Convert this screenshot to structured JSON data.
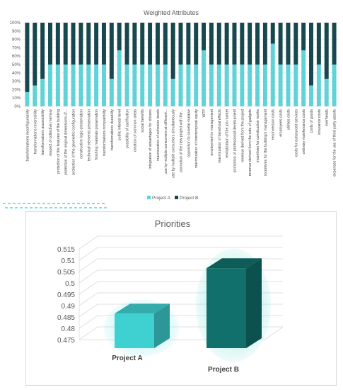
{
  "chart_data": [
    {
      "type": "bar",
      "stacked": "100%",
      "title": "Weighted Attributes",
      "yticks": [
        "0%",
        "10%",
        "20%",
        "30%",
        "40%",
        "50%",
        "60%",
        "70%",
        "80%",
        "90%",
        "100%"
      ],
      "ylim": [
        0,
        100
      ],
      "legend_position": "bottom",
      "categories": [
        "transformations reconfigurability",
        "transformations reversibility",
        "transformations accessibility",
        "respect of collective memory",
        "protection of the features of the building",
        "protection of the original dimensions of...",
        "protection of the geometric configuration",
        "constructive logic preservation",
        "technical elements preservation",
        "finishing materials preservation",
        "transformations compatibility",
        "transformations durability",
        "public interest level",
        "possibility of use/fruition",
        "creation of common areas",
        "social benefits",
        "integration of advantages for citizens",
        "maximization of cohesion levels",
        "use by multiple consumers at different...",
        "use by multiple consumers simultaneously",
        "promotion of the new project with the...",
        "opposition to societal malaise",
        "maximization of intertemporal equity",
        "WTP",
        "employment in management",
        "maximization of beneficial effects",
        "revitalization of the job market",
        "promotion of professional development",
        "revenue derived from the project",
        "revenue derived from the sale of gadgets",
        "incentives for construction works",
        "incentives for the building's management",
        "reconversion costs",
        "employees costs",
        "utilities costs",
        "costs for outsourced services",
        "ordinary maintenance costs",
        "costs of goods",
        "insurance costs",
        "overheads",
        "expenses for the use of third party assets"
      ],
      "series": [
        {
          "name": "Project A",
          "values": [
            17,
            25,
            33,
            50,
            50,
            50,
            50,
            50,
            50,
            50,
            50,
            33,
            67,
            50,
            50,
            50,
            50,
            50,
            50,
            33,
            50,
            50,
            50,
            67,
            50,
            50,
            50,
            50,
            50,
            50,
            50,
            50,
            75,
            50,
            50,
            50,
            67,
            25,
            50,
            33,
            50
          ],
          "color": "#5fd3d8"
        },
        {
          "name": "Project B",
          "values": [
            83,
            75,
            67,
            50,
            50,
            50,
            50,
            50,
            50,
            50,
            50,
            67,
            33,
            50,
            50,
            50,
            50,
            50,
            50,
            67,
            50,
            50,
            50,
            33,
            50,
            50,
            50,
            50,
            50,
            50,
            50,
            50,
            25,
            50,
            50,
            50,
            33,
            75,
            50,
            67,
            50
          ],
          "color": "#17484d"
        }
      ]
    },
    {
      "type": "bar",
      "style": "3d-column",
      "title": "Priorities",
      "categories": [
        "Project A",
        "Project B"
      ],
      "values": [
        0.489,
        0.509
      ],
      "colors": [
        "#3fd0d2",
        "#11706b"
      ],
      "yticks": [
        "0.475",
        "0.48",
        "0.485",
        "0.49",
        "0.495",
        "0.5",
        "0.505",
        "0.51",
        "0.515"
      ],
      "ylim": [
        0.475,
        0.515
      ]
    }
  ]
}
